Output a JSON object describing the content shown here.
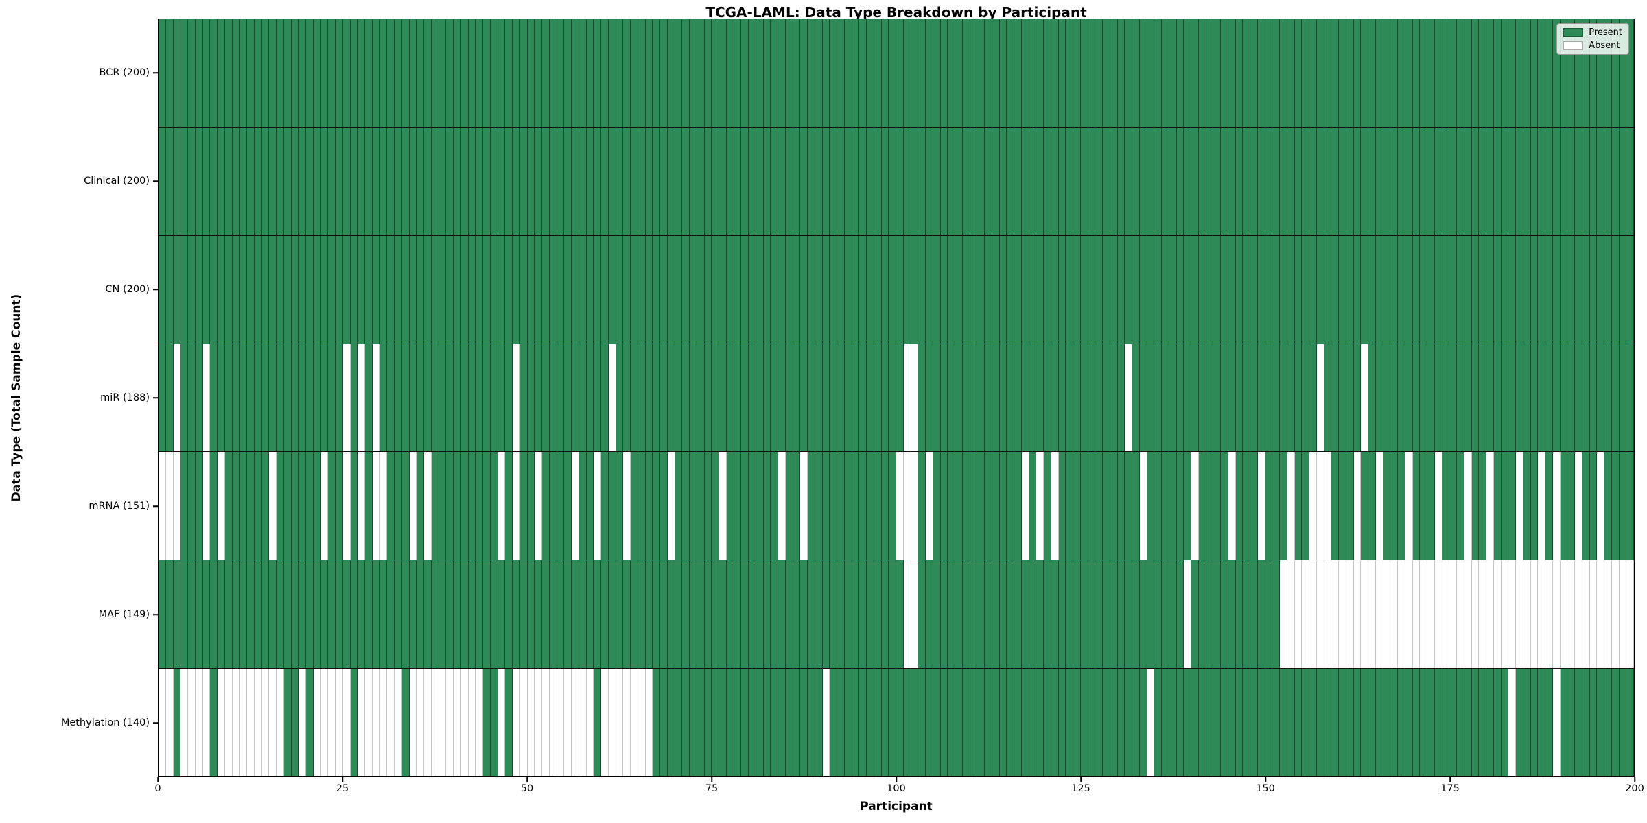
{
  "chart_data": {
    "type": "heatmap",
    "title": "TCGA-LAML: Data Type Breakdown by Participant",
    "xlabel": "Participant",
    "ylabel": "Data Type (Total Sample Count)",
    "n_participants": 200,
    "x_ticks": [
      0,
      25,
      50,
      75,
      100,
      125,
      150,
      175,
      200
    ],
    "present_color": "#2e8b57",
    "absent_color": "#ffffff",
    "legend": [
      {
        "label": "Present",
        "kind": "present"
      },
      {
        "label": "Absent",
        "kind": "absent"
      }
    ],
    "rows": [
      {
        "label": "BCR (200)",
        "name": "BCR",
        "present_count": 200,
        "absent": []
      },
      {
        "label": "Clinical (200)",
        "name": "Clinical",
        "present_count": 200,
        "absent": []
      },
      {
        "label": "CN (200)",
        "name": "CN",
        "present_count": 200,
        "absent": []
      },
      {
        "label": "miR (188)",
        "name": "miR",
        "present_count": 188,
        "absent": [
          2,
          6,
          25,
          27,
          29,
          48,
          61,
          101,
          102,
          131,
          157,
          163
        ]
      },
      {
        "label": "mRNA (151)",
        "name": "mRNA",
        "present_count": 151,
        "absent": [
          0,
          1,
          2,
          6,
          8,
          15,
          22,
          25,
          27,
          29,
          30,
          34,
          36,
          46,
          48,
          51,
          56,
          59,
          63,
          69,
          76,
          84,
          87,
          100,
          101,
          102,
          104,
          117,
          119,
          121,
          133,
          140,
          145,
          149,
          153,
          156,
          157,
          158,
          162,
          165,
          169,
          173,
          177,
          180,
          184,
          187,
          189,
          192,
          195
        ]
      },
      {
        "label": "MAF (149)",
        "name": "MAF",
        "present_count": 149,
        "absent": [
          101,
          102,
          139,
          152,
          153,
          154,
          155,
          156,
          157,
          158,
          159,
          160,
          161,
          162,
          163,
          164,
          165,
          166,
          167,
          168,
          169,
          170,
          171,
          172,
          173,
          174,
          175,
          176,
          177,
          178,
          179,
          180,
          181,
          182,
          183,
          184,
          185,
          186,
          187,
          188,
          189,
          190,
          191,
          192,
          193,
          194,
          195,
          196,
          197,
          198,
          199
        ]
      },
      {
        "label": "Methylation (140)",
        "name": "Methylation",
        "present_count": 140,
        "absent": [
          0,
          1,
          3,
          4,
          5,
          6,
          8,
          9,
          10,
          11,
          12,
          13,
          14,
          15,
          16,
          19,
          21,
          22,
          23,
          24,
          25,
          27,
          28,
          29,
          30,
          31,
          32,
          34,
          35,
          36,
          37,
          38,
          39,
          40,
          41,
          42,
          43,
          46,
          48,
          49,
          50,
          51,
          52,
          53,
          54,
          55,
          56,
          57,
          58,
          60,
          61,
          62,
          63,
          64,
          65,
          66,
          90,
          134,
          183,
          189
        ]
      }
    ]
  }
}
